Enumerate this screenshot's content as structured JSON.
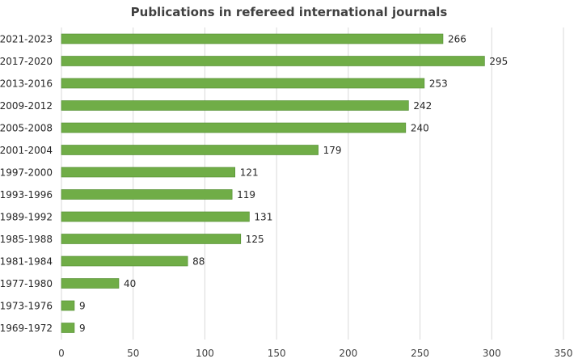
{
  "chart_data": {
    "type": "bar",
    "orientation": "horizontal",
    "title": "Publications in refereed international journals",
    "xlabel": "",
    "ylabel": "",
    "categories": [
      "2021-2023",
      "2017-2020",
      "2013-2016",
      "2009-2012",
      "2005-2008",
      "2001-2004",
      "1997-2000",
      "1993-1996",
      "1989-1992",
      "1985-1988",
      "1981-1984",
      "1977-1980",
      "1973-1976",
      "1969-1972"
    ],
    "values": [
      266,
      295,
      253,
      242,
      240,
      179,
      121,
      119,
      131,
      125,
      88,
      40,
      9,
      9
    ],
    "xlim": [
      0,
      350
    ],
    "xticks": [
      0,
      50,
      100,
      150,
      200,
      250,
      300,
      350
    ],
    "grid": "vertical",
    "data_labels": true,
    "bar_color": "#70ad47",
    "bar_edge_color": "#4e8a2e",
    "legend": "none"
  }
}
